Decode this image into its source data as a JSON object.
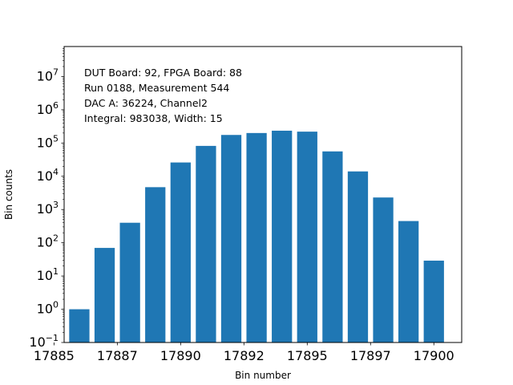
{
  "chart_data": {
    "type": "bar",
    "xlabel": "Bin number",
    "ylabel": "Bin counts",
    "yscale": "log",
    "ylim": [
      0.1,
      80000000
    ],
    "xlim": [
      17885.4,
      17901.1
    ],
    "x_ticks": [
      17885,
      17887.5,
      17890,
      17892.5,
      17895,
      17897.5,
      17900
    ],
    "x_tick_labels": [
      "17885",
      "17887",
      "17890",
      "17892",
      "17895",
      "17897",
      "17900"
    ],
    "y_ticks": [
      {
        "value": 0.1,
        "base": "10",
        "exp": "−1"
      },
      {
        "value": 1,
        "base": "10",
        "exp": "0"
      },
      {
        "value": 10,
        "base": "10",
        "exp": "1"
      },
      {
        "value": 100,
        "base": "10",
        "exp": "2"
      },
      {
        "value": 1000,
        "base": "10",
        "exp": "3"
      },
      {
        "value": 10000,
        "base": "10",
        "exp": "4"
      },
      {
        "value": 100000,
        "base": "10",
        "exp": "5"
      },
      {
        "value": 1000000,
        "base": "10",
        "exp": "6"
      },
      {
        "value": 10000000,
        "base": "10",
        "exp": "7"
      }
    ],
    "bar_width": 0.8,
    "bar_color": "#1f77b4",
    "x": [
      17886,
      17887,
      17888,
      17889,
      17890,
      17891,
      17892,
      17893,
      17894,
      17895,
      17896,
      17897,
      17898,
      17899,
      17900
    ],
    "values": [
      1,
      70,
      400,
      4700,
      26000,
      82000,
      175000,
      200000,
      235000,
      220000,
      56000,
      14000,
      2300,
      450,
      29
    ],
    "annotations": [
      "DUT Board: 92, FPGA Board: 88",
      "Run 0188, Measurement 544",
      "DAC A: 36224, Channel2",
      "Integral: 983038, Width: 15"
    ],
    "grid": false,
    "legend": "none"
  }
}
